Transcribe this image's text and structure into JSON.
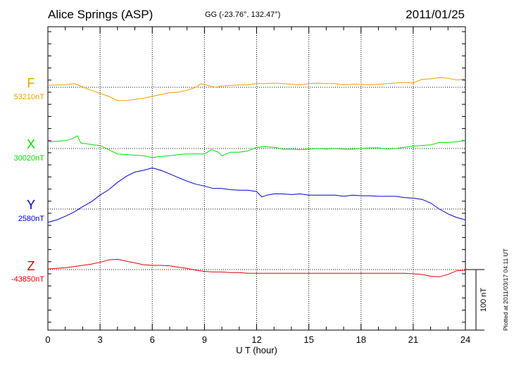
{
  "header": {
    "station": "Alice Springs (ASP)",
    "coords": "GG (-23.76°, 132.47°)",
    "date": "2011/01/25"
  },
  "plotted_note": "Plotted at 2011/03/17 04:11 UT",
  "chart_data": {
    "type": "line",
    "xlabel": "U T (hour)",
    "xlim": [
      0,
      24
    ],
    "xticks": [
      0,
      3,
      6,
      9,
      12,
      15,
      18,
      21,
      24
    ],
    "grid": true,
    "units": "nT",
    "nt_per_division": 100,
    "scale_bar_label": "100 nT",
    "series": [
      {
        "name": "F",
        "baseline_label": "53210nT",
        "baseline": 53210,
        "color": "#f0a000",
        "x": [
          0,
          0.5,
          1,
          1.5,
          1.8,
          2.2,
          2.6,
          3,
          3.5,
          4,
          4.5,
          5,
          5.5,
          6,
          6.5,
          7,
          7.5,
          8,
          8.5,
          8.8,
          9.2,
          9.6,
          10,
          10.5,
          11,
          11.5,
          12,
          12.5,
          13,
          13.5,
          14,
          14.5,
          15,
          15.5,
          16,
          16.5,
          17,
          17.5,
          18,
          18.5,
          19,
          19.5,
          20,
          20.5,
          21,
          21.5,
          22,
          22.5,
          23,
          23.5,
          24
        ],
        "values": [
          53213,
          53214,
          53214,
          53216,
          53213,
          53208,
          53204,
          53200,
          53195,
          53188,
          53188,
          53190,
          53192,
          53195,
          53198,
          53201,
          53202,
          53205,
          53210,
          53216,
          53213,
          53210,
          53212,
          53213,
          53214,
          53214,
          53216,
          53216,
          53217,
          53216,
          53215,
          53214,
          53216,
          53217,
          53216,
          53216,
          53214,
          53215,
          53215,
          53214,
          53215,
          53216,
          53217,
          53218,
          53217,
          53223,
          53224,
          53226,
          53225,
          53222,
          53224
        ]
      },
      {
        "name": "X",
        "baseline_label": "30020nT",
        "baseline": 30020,
        "color": "#00dd00",
        "x": [
          0,
          0.5,
          1,
          1.4,
          1.7,
          1.9,
          2.2,
          2.6,
          3,
          3.5,
          4,
          4.5,
          5,
          5.5,
          6,
          6.5,
          7,
          7.5,
          8,
          8.5,
          9,
          9.4,
          9.8,
          10,
          10.5,
          11,
          11.5,
          12,
          12.5,
          13,
          13.5,
          14,
          14.5,
          15,
          15.5,
          16,
          16.5,
          17,
          17.5,
          18,
          18.5,
          19,
          19.5,
          20,
          20.5,
          21,
          21.5,
          22,
          22.5,
          23,
          23.5,
          24
        ],
        "values": [
          30031,
          30032,
          30033,
          30036,
          30041,
          30029,
          30028,
          30026,
          30025,
          30018,
          30011,
          30010,
          30009,
          30008,
          30005,
          30007,
          30008,
          30010,
          30011,
          30011,
          30011,
          30018,
          30014,
          30008,
          30014,
          30014,
          30016,
          30022,
          30023,
          30022,
          30019,
          30019,
          30018,
          30019,
          30020,
          30019,
          30020,
          30019,
          30019,
          30020,
          30021,
          30021,
          30019,
          30020,
          30022,
          30024,
          30025,
          30026,
          30030,
          30030,
          30031,
          30033
        ]
      },
      {
        "name": "Y",
        "baseline_label": "2580nT",
        "baseline": 2580,
        "color": "#0000cc",
        "x": [
          0,
          0.5,
          1,
          1.5,
          2,
          2.5,
          3,
          3.5,
          4,
          4.5,
          5,
          5.5,
          6,
          6.5,
          7,
          7.5,
          8,
          8.5,
          9,
          9.5,
          10,
          10.5,
          11,
          11.5,
          12,
          12.3,
          12.6,
          13,
          13.5,
          14,
          14.5,
          15,
          15.5,
          16,
          16.5,
          17,
          17.5,
          18,
          18.5,
          19,
          19.5,
          20,
          20.5,
          21,
          21.5,
          22,
          22.5,
          23,
          23.5,
          24
        ],
        "values": [
          2558,
          2562,
          2568,
          2575,
          2584,
          2592,
          2603,
          2612,
          2624,
          2634,
          2641,
          2644,
          2648,
          2644,
          2638,
          2632,
          2626,
          2621,
          2618,
          2614,
          2614,
          2612,
          2611,
          2611,
          2609,
          2600,
          2603,
          2605,
          2605,
          2604,
          2605,
          2603,
          2603,
          2603,
          2603,
          2601,
          2603,
          2602,
          2602,
          2601,
          2601,
          2601,
          2599,
          2598,
          2596,
          2590,
          2580,
          2572,
          2566,
          2562
        ]
      },
      {
        "name": "Z",
        "baseline_label": "-43850nT",
        "baseline": -43850,
        "color": "#dd0000",
        "x": [
          0,
          0.5,
          1,
          1.5,
          2,
          2.5,
          3,
          3.5,
          4,
          4.5,
          5,
          5.5,
          6,
          6.5,
          7,
          7.5,
          8,
          8.5,
          9,
          9.5,
          10,
          10.5,
          11,
          11.5,
          12,
          12.5,
          13,
          13.5,
          14,
          14.5,
          15,
          15.5,
          16,
          16.5,
          17,
          17.5,
          18,
          18.5,
          19,
          19.5,
          20,
          20.5,
          21,
          21.5,
          22,
          22.5,
          23,
          23.5,
          24
        ],
        "values": [
          -43849,
          -43848,
          -43847,
          -43845,
          -43843,
          -43841,
          -43838,
          -43834,
          -43833,
          -43836,
          -43839,
          -43842,
          -43843,
          -43843,
          -43844,
          -43846,
          -43848,
          -43851,
          -43853,
          -43854,
          -43854,
          -43855,
          -43855,
          -43856,
          -43856,
          -43856,
          -43856,
          -43856,
          -43856,
          -43856,
          -43856,
          -43856,
          -43856,
          -43856,
          -43856,
          -43856,
          -43856,
          -43856,
          -43856,
          -43856,
          -43856,
          -43856,
          -43857,
          -43858,
          -43861,
          -43862,
          -43858,
          -43852,
          -43851
        ]
      }
    ]
  }
}
